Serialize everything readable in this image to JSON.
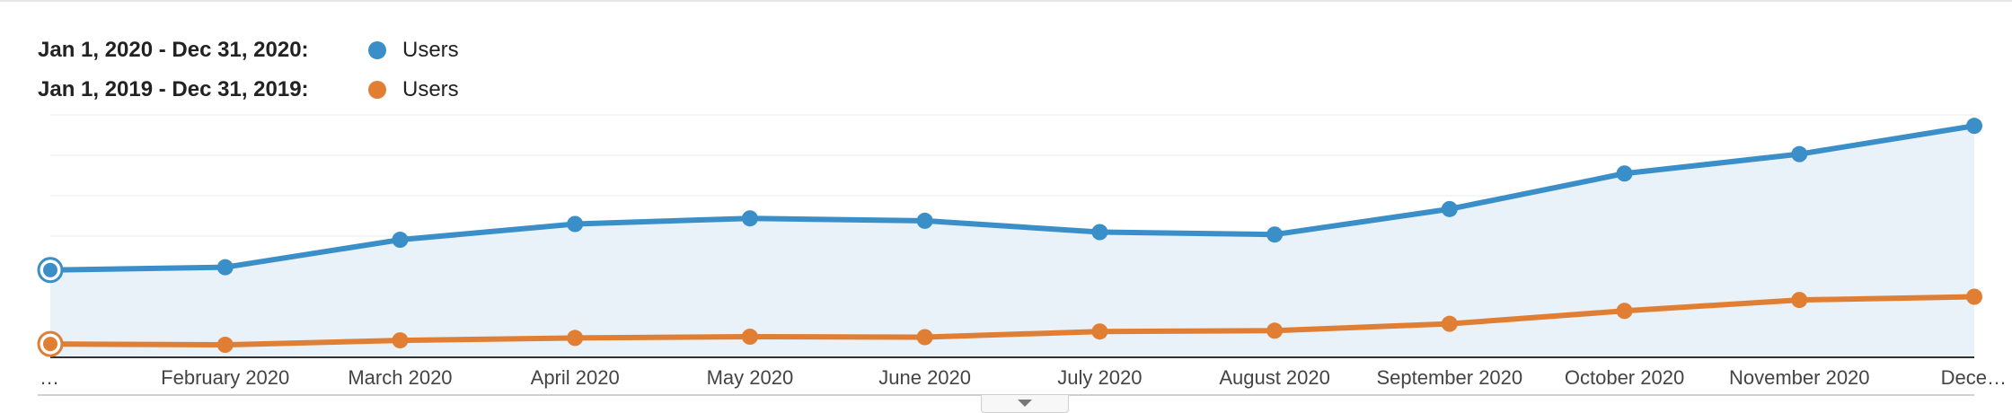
{
  "legend": [
    {
      "range": "Jan 1, 2020 - Dec 31, 2020:",
      "metric": "Users",
      "color": "#3b8fc8"
    },
    {
      "range": "Jan 1, 2019 - Dec 31, 2019:",
      "metric": "Users",
      "color": "#e07f33"
    }
  ],
  "chart_data": {
    "type": "line",
    "title": "",
    "xlabel": "",
    "ylabel": "",
    "grid": true,
    "legend_position": "top-left",
    "categories": [
      "…",
      "February 2020",
      "March 2020",
      "April 2020",
      "May 2020",
      "June 2020",
      "July 2020",
      "August 2020",
      "September 2020",
      "October 2020",
      "November 2020",
      "Dece…"
    ],
    "ylim": [
      0,
      600
    ],
    "series": [
      {
        "name": "Jan 1, 2020 - Dec 31, 2020: Users",
        "color": "#3b8fc8",
        "filled": true,
        "values": [
          216,
          223,
          291,
          330,
          344,
          338,
          310,
          304,
          367,
          455,
          503,
          573
        ]
      },
      {
        "name": "Jan 1, 2019 - Dec 31, 2019: Users",
        "color": "#e07f33",
        "filled": false,
        "values": [
          33,
          31,
          42,
          48,
          51,
          50,
          64,
          66,
          83,
          115,
          142,
          150
        ]
      }
    ]
  }
}
